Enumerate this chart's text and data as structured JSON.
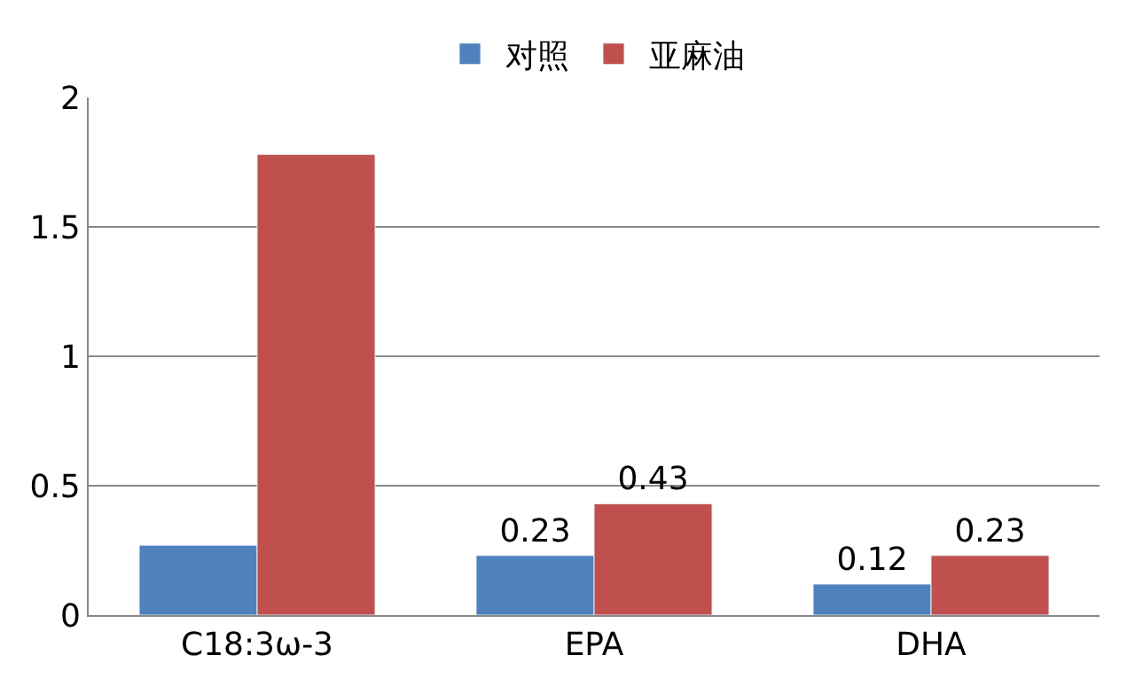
{
  "chart_data": {
    "type": "bar",
    "categories": [
      "C18:3ω-3",
      "EPA",
      "DHA"
    ],
    "series": [
      {
        "name": "对照",
        "color": "#4f81bd",
        "values": [
          0.27,
          0.23,
          0.12
        ],
        "value_labels": [
          null,
          "0.23",
          "0.12"
        ]
      },
      {
        "name": "亚麻油",
        "color": "#c0504d",
        "values": [
          1.78,
          0.43,
          0.23
        ],
        "value_labels": [
          null,
          "0.43",
          "0.23"
        ]
      }
    ],
    "ylim": [
      0,
      2
    ],
    "yticks": [
      0,
      0.5,
      1,
      1.5,
      2
    ],
    "grid": "y",
    "legend": "top"
  }
}
